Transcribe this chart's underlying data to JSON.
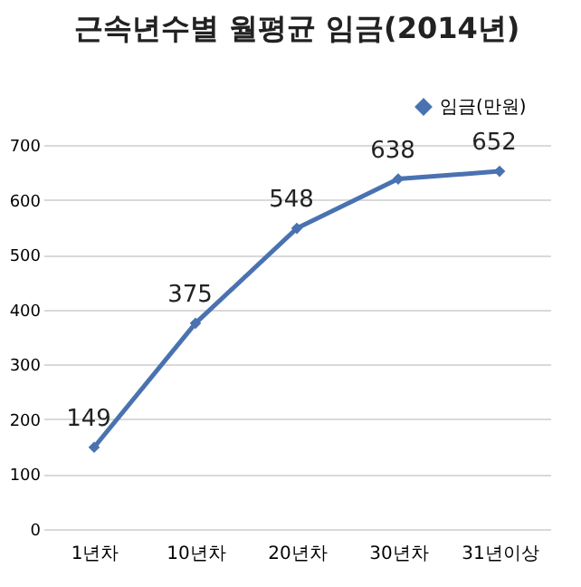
{
  "chart_data": {
    "type": "line",
    "title": "근속년수별 월평균 임금(2014년)",
    "categories": [
      "1년차",
      "10년차",
      "20년차",
      "30년차",
      "31년이상"
    ],
    "series": [
      {
        "name": "임금(만원)",
        "color": "#4a72b0",
        "values": [
          149,
          375,
          548,
          638,
          652
        ]
      }
    ],
    "ylim": [
      0,
      700
    ],
    "yticks": [
      0,
      100,
      200,
      300,
      400,
      500,
      600,
      700
    ],
    "grid": "y",
    "legend": "top right",
    "marker": "diamond",
    "line_style": "solid",
    "data_labels": true
  }
}
